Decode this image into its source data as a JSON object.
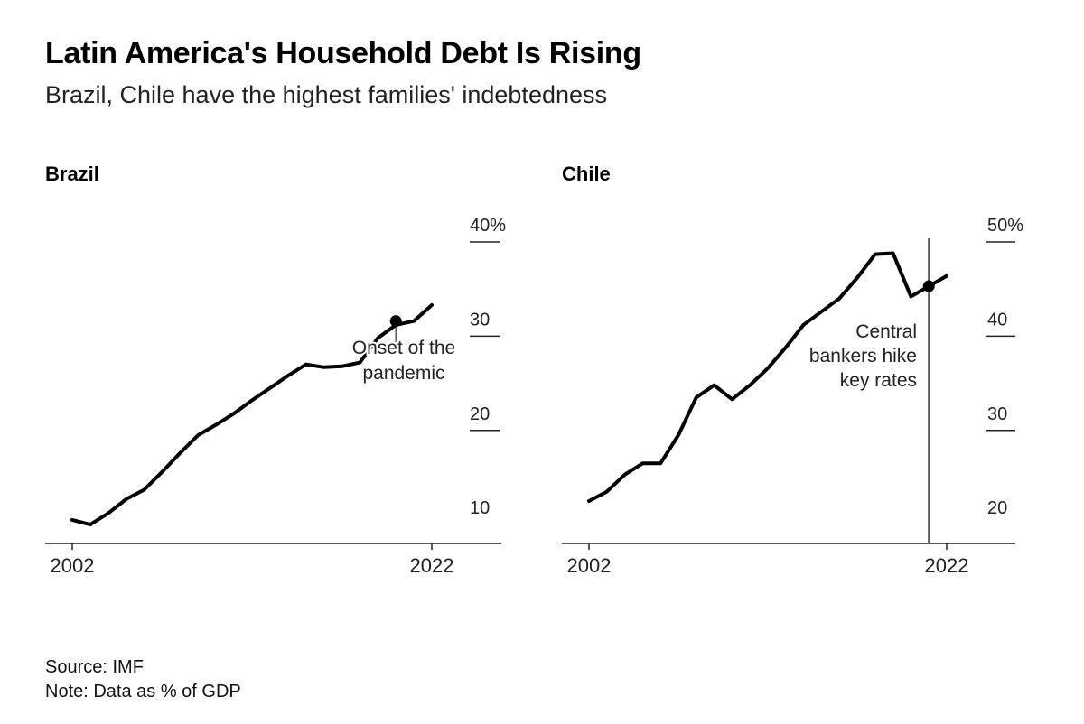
{
  "header": {
    "title": "Latin America's Household Debt Is Rising",
    "subtitle": "Brazil, Chile have the highest families' indebtedness"
  },
  "footer": {
    "source": "Source: IMF",
    "note": "Note: Data as % of GDP"
  },
  "colors": {
    "line": "#000000",
    "axis": "#222222",
    "marker_line": "#555555"
  },
  "chart_data": [
    {
      "type": "line",
      "title": "Brazil",
      "x": [
        2002,
        2003,
        2004,
        2005,
        2006,
        2007,
        2008,
        2009,
        2010,
        2011,
        2012,
        2013,
        2014,
        2015,
        2016,
        2017,
        2018,
        2019,
        2020,
        2021,
        2022
      ],
      "values": [
        10.5,
        10.0,
        11.2,
        12.7,
        13.7,
        15.6,
        17.6,
        19.5,
        20.6,
        21.8,
        23.2,
        24.5,
        25.8,
        27.0,
        26.7,
        26.8,
        27.2,
        29.8,
        31.2,
        31.6,
        33.3
      ],
      "ylim": [
        8,
        40
      ],
      "yticks": [
        10,
        20,
        30,
        40
      ],
      "ytick_labels": [
        "10",
        "20",
        "30",
        "40%"
      ],
      "xtick_labels": [
        "2002",
        "2022"
      ],
      "annotation": {
        "x": 2020,
        "y": 31.6,
        "text": [
          "Onset of the",
          "pandemic"
        ]
      }
    },
    {
      "type": "line",
      "title": "Chile",
      "x": [
        2002,
        2003,
        2004,
        2005,
        2006,
        2007,
        2008,
        2009,
        2010,
        2011,
        2012,
        2013,
        2014,
        2015,
        2016,
        2017,
        2018,
        2019,
        2020,
        2021,
        2022
      ],
      "values": [
        22.5,
        23.5,
        25.3,
        26.5,
        26.5,
        29.5,
        33.5,
        34.8,
        33.3,
        34.8,
        36.6,
        38.8,
        41.2,
        42.6,
        44.0,
        46.2,
        48.7,
        48.8,
        44.2,
        45.3,
        46.4
      ],
      "ylim": [
        18,
        50
      ],
      "yticks": [
        20,
        30,
        40,
        50
      ],
      "ytick_labels": [
        "20",
        "30",
        "40",
        "50%"
      ],
      "xtick_labels": [
        "2002",
        "2022"
      ],
      "annotation": {
        "x": 2021,
        "y": 45.3,
        "text": [
          "Central",
          "bankers hike",
          "key rates"
        ]
      }
    }
  ]
}
